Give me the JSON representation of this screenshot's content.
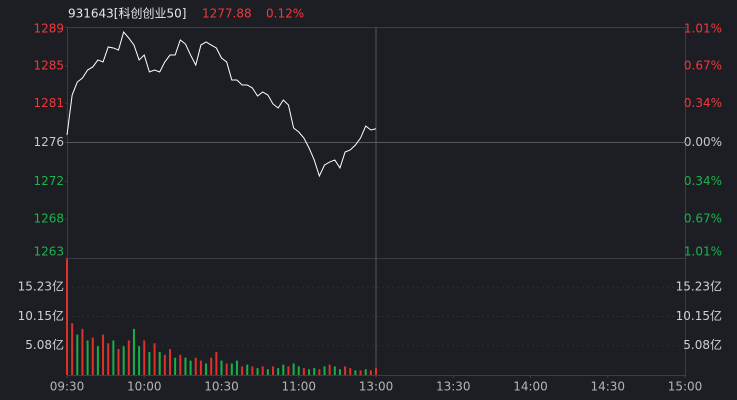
{
  "chart_data": {
    "type": "line",
    "header": {
      "name": "931643[科创创业50]",
      "price": "1277.88",
      "change": "0.12%"
    },
    "x": [
      0,
      2,
      4,
      6,
      8,
      10,
      12,
      14,
      16,
      18,
      20,
      22,
      24,
      26,
      28,
      30,
      32,
      34,
      36,
      38,
      40,
      42,
      44,
      46,
      48,
      50,
      52,
      54,
      56,
      58,
      60,
      62,
      64,
      66,
      68,
      70,
      72,
      74,
      76,
      78,
      80,
      82,
      84,
      86,
      88,
      90,
      92,
      94,
      96,
      98,
      100,
      102,
      104,
      106,
      108,
      110,
      112,
      114,
      116,
      118,
      120
    ],
    "values": [
      1277.19,
      1281.65,
      1283.1,
      1283.55,
      1284.44,
      1284.78,
      1285.56,
      1285.34,
      1287.01,
      1286.9,
      1286.67,
      1288.68,
      1288.01,
      1287.23,
      1285.56,
      1286.11,
      1284.22,
      1284.44,
      1284.22,
      1285.34,
      1286.11,
      1286.11,
      1287.79,
      1287.34,
      1286.11,
      1284.99,
      1287.23,
      1287.57,
      1287.23,
      1286.9,
      1285.78,
      1285.34,
      1283.33,
      1283.33,
      1282.77,
      1282.77,
      1282.43,
      1281.54,
      1281.99,
      1281.65,
      1280.65,
      1280.2,
      1281.09,
      1280.54,
      1277.97,
      1277.52,
      1276.85,
      1275.74,
      1274.4,
      1272.61,
      1273.84,
      1274.17,
      1274.4,
      1273.51,
      1275.29,
      1275.52,
      1276.07,
      1276.85,
      1278.19,
      1277.75,
      1277.88
    ],
    "color": "#ffffff",
    "up_color": "#f0383c",
    "down_color": "#1bb34c",
    "flat_color": "#c8c8c8",
    "xlim": [
      0,
      240
    ],
    "xticks": [
      {
        "value": 0,
        "label": "09:30"
      },
      {
        "value": 30,
        "label": "10:00"
      },
      {
        "value": 60,
        "label": "10:30"
      },
      {
        "value": 90,
        "label": "11:00"
      },
      {
        "value": 120,
        "label": "13:00"
      },
      {
        "value": 150,
        "label": "13:30"
      },
      {
        "value": 180,
        "label": "14:00"
      },
      {
        "value": 210,
        "label": "14:30"
      },
      {
        "value": 240,
        "label": "15:00"
      }
    ],
    "ylim": [
      1263.46,
      1289.24
    ],
    "yticks": [
      {
        "value": 1289.24,
        "label": "1289"
      },
      {
        "value": 1284.9,
        "label": "1285"
      },
      {
        "value": 1280.69,
        "label": "1281"
      },
      {
        "value": 1276.35,
        "label": "1276"
      },
      {
        "value": 1272.01,
        "label": "1272"
      },
      {
        "value": 1267.8,
        "label": "1268"
      },
      {
        "value": 1263.46,
        "label": "1263"
      }
    ],
    "y2lim": [
      -1.01,
      1.01
    ],
    "y2ticks": [
      {
        "value": 1.01,
        "label": "1.01%"
      },
      {
        "value": 0.67,
        "label": "0.67%"
      },
      {
        "value": 0.34,
        "label": "0.34%"
      },
      {
        "value": 0,
        "label": "0.00%"
      },
      {
        "value": -0.34,
        "label": "0.34%"
      },
      {
        "value": -0.67,
        "label": "0.67%"
      },
      {
        "value": -1.01,
        "label": "1.01%"
      }
    ],
    "volume": {
      "type": "bar",
      "values": [
        20.2,
        9,
        7,
        8,
        6,
        6.5,
        5,
        7,
        5.5,
        6,
        4.5,
        5,
        6,
        8,
        5,
        6,
        4,
        5.5,
        4,
        3.5,
        4.5,
        3,
        3.5,
        3,
        2.5,
        3,
        2.5,
        2,
        3,
        4,
        2.5,
        2,
        2,
        2.5,
        1.5,
        1.8,
        1.5,
        1.2,
        1.5,
        1,
        1.5,
        1.2,
        1.8,
        1.5,
        2,
        1.5,
        1.2,
        1,
        1.2,
        1,
        1.5,
        1.8,
        1.5,
        1,
        1.5,
        1.2,
        0.8,
        0.8,
        1,
        0.8,
        1.2
      ],
      "bar_colors": [
        "#e0302b",
        "#e0302b",
        "#19b04b",
        "#e0302b",
        "#19b04b",
        "#e0302b",
        "#19b04b",
        "#e0302b",
        "#e0302b",
        "#19b04b",
        "#e0302b",
        "#19b04b",
        "#e0302b",
        "#19b04b",
        "#19b04b",
        "#e0302b",
        "#19b04b",
        "#e0302b",
        "#19b04b",
        "#e0302b",
        "#e0302b",
        "#19b04b",
        "#e0302b",
        "#19b04b",
        "#19b04b",
        "#e0302b",
        "#e0302b",
        "#19b04b",
        "#e0302b",
        "#e0302b",
        "#19b04b",
        "#e0302b",
        "#19b04b",
        "#19b04b",
        "#e0302b",
        "#19b04b",
        "#e0302b",
        "#19b04b",
        "#e0302b",
        "#19b04b",
        "#e0302b",
        "#19b04b",
        "#19b04b",
        "#e0302b",
        "#19b04b",
        "#19b04b",
        "#e0302b",
        "#19b04b",
        "#19b04b",
        "#e0302b",
        "#19b04b",
        "#e0302b",
        "#19b04b",
        "#19b04b",
        "#e0302b",
        "#e0302b",
        "#19b04b",
        "#e0302b",
        "#19b04b",
        "#e0302b",
        "#e0302b"
      ],
      "ylim": [
        0,
        20.3
      ],
      "yticks": [
        {
          "value": 15.23,
          "label": "15.23亿"
        },
        {
          "value": 10.15,
          "label": "10.15亿"
        },
        {
          "value": 5.08,
          "label": "5.08亿"
        }
      ]
    }
  }
}
